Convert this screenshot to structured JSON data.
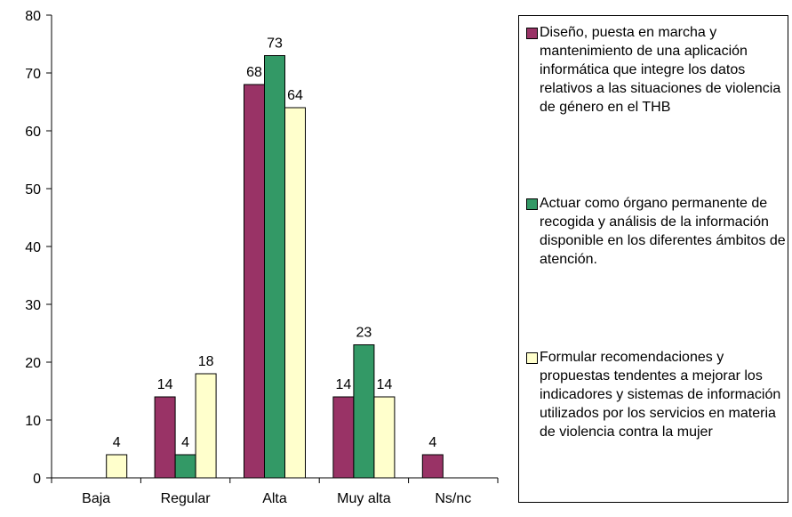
{
  "chart_data": {
    "type": "bar",
    "categories": [
      "Baja",
      "Regular",
      "Alta",
      "Muy alta",
      "Ns/nc"
    ],
    "series": [
      {
        "name": "Diseño, puesta en marcha y mantenimiento de una aplicación informática que integre los datos relativos a las situaciones de violencia de género en el THB",
        "color": "#993366",
        "values": [
          null,
          14,
          68,
          14,
          4
        ]
      },
      {
        "name": "Actuar como órgano permanente de recogida y análisis de la información disponible en los diferentes ámbitos de atención.",
        "color": "#339966",
        "values": [
          null,
          4,
          73,
          23,
          null
        ]
      },
      {
        "name": "Formular recomendaciones y propuestas tendentes a mejorar los indicadores y sistemas de información utilizados por los servicios en materia de violencia contra la mujer",
        "color": "#ffffcc",
        "values": [
          4,
          18,
          64,
          14,
          null
        ]
      }
    ],
    "ylim": [
      0,
      80
    ],
    "yticks": [
      0,
      10,
      20,
      30,
      40,
      50,
      60,
      70,
      80
    ],
    "grid": false,
    "legend": "right"
  }
}
